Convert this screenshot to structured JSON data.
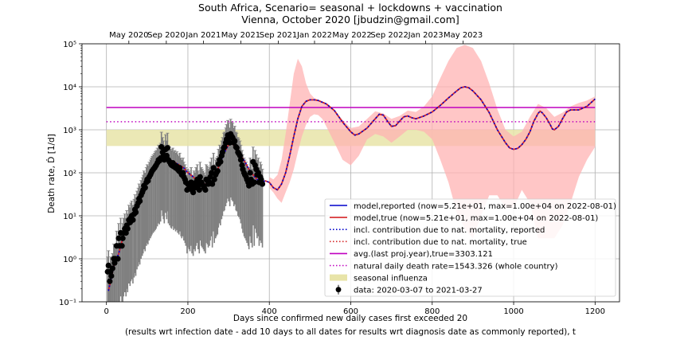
{
  "chart_data": {
    "type": "line",
    "title": "South Africa, Scenario= seasonal + lockdowns + vaccination",
    "subtitle": "Vienna, October 2020 [jbudzin@gmail.com]",
    "xlabel": "Days since confirmed new daily cases first exceeded 20",
    "xlabel2": "(results wrt infection date - add 10 days to all dates for results wrt diagnosis date as commonly reported), t",
    "ylabel": "Death rate, Ḋ [1/d]",
    "y_scale": "log",
    "xlim": [
      -60,
      1260
    ],
    "ylim": [
      0.1,
      100000
    ],
    "grid": true,
    "legend_position": "lower-right",
    "x_ticks": [
      0,
      200,
      400,
      600,
      800,
      1000,
      1200
    ],
    "x_tick_labels": [
      "0",
      "200",
      "400",
      "600",
      "800",
      "1000",
      "1200"
    ],
    "y_ticks": [
      0.1,
      1,
      10,
      100,
      1000,
      10000,
      100000
    ],
    "y_tick_labels": [
      "10⁻¹",
      "10⁰",
      "10¹",
      "10²",
      "10³",
      "10⁴",
      "10⁵"
    ],
    "top_axis": {
      "ticks": [
        55,
        147,
        238,
        330,
        422,
        511,
        603,
        695,
        784,
        876
      ],
      "labels": [
        "May 2020",
        "Sep 2020",
        "Jan 2021",
        "May 2021",
        "Sep 2021",
        "Jan 2022",
        "May 2022",
        "Sep 2022",
        "Jan 2023",
        "May 2023"
      ]
    },
    "colors": {
      "model_reported": "#0000cc",
      "model_true": "#d62728",
      "avg_line": "#bf00bf",
      "natural_line": "#bf00bf",
      "seasonal_band": "#e8e4a8",
      "uncertainty_band": "#ffb3b3",
      "data_points": "#000000",
      "error_bars": "#808080"
    },
    "horizontal_lines": {
      "avg_last_proj_year": 3303.121,
      "natural_daily_death_rate": 1543.326
    },
    "seasonal_band": [
      420,
      1000
    ],
    "model_curve": [
      [
        5,
        0.18
      ],
      [
        10,
        0.3
      ],
      [
        15,
        0.5
      ],
      [
        20,
        0.8
      ],
      [
        30,
        1.3
      ],
      [
        40,
        3
      ],
      [
        50,
        6
      ],
      [
        60,
        9
      ],
      [
        70,
        14
      ],
      [
        80,
        25
      ],
      [
        90,
        45
      ],
      [
        100,
        70
      ],
      [
        110,
        100
      ],
      [
        120,
        140
      ],
      [
        130,
        180
      ],
      [
        140,
        230
      ],
      [
        145,
        260
      ],
      [
        150,
        230
      ],
      [
        160,
        190
      ],
      [
        170,
        170
      ],
      [
        180,
        150
      ],
      [
        190,
        130
      ],
      [
        200,
        100
      ],
      [
        210,
        85
      ],
      [
        220,
        70
      ],
      [
        230,
        60
      ],
      [
        240,
        50
      ],
      [
        250,
        65
      ],
      [
        260,
        60
      ],
      [
        270,
        100
      ],
      [
        280,
        180
      ],
      [
        290,
        300
      ],
      [
        300,
        450
      ],
      [
        305,
        500
      ],
      [
        310,
        470
      ],
      [
        320,
        350
      ],
      [
        330,
        250
      ],
      [
        340,
        180
      ],
      [
        350,
        120
      ],
      [
        360,
        90
      ],
      [
        370,
        70
      ],
      [
        380,
        60
      ],
      [
        390,
        65
      ],
      [
        400,
        60
      ],
      [
        410,
        45
      ],
      [
        420,
        40
      ],
      [
        430,
        55
      ],
      [
        440,
        100
      ],
      [
        450,
        250
      ],
      [
        460,
        700
      ],
      [
        470,
        1800
      ],
      [
        480,
        3500
      ],
      [
        490,
        4600
      ],
      [
        500,
        5000
      ],
      [
        510,
        5000
      ],
      [
        520,
        4800
      ],
      [
        540,
        4000
      ],
      [
        560,
        2800
      ],
      [
        580,
        1500
      ],
      [
        600,
        900
      ],
      [
        610,
        750
      ],
      [
        620,
        800
      ],
      [
        640,
        1100
      ],
      [
        660,
        1800
      ],
      [
        670,
        2300
      ],
      [
        680,
        2200
      ],
      [
        690,
        1600
      ],
      [
        700,
        1200
      ],
      [
        710,
        1250
      ],
      [
        720,
        1600
      ],
      [
        730,
        2000
      ],
      [
        740,
        2100
      ],
      [
        750,
        1900
      ],
      [
        760,
        1800
      ],
      [
        780,
        2100
      ],
      [
        800,
        2600
      ],
      [
        820,
        3700
      ],
      [
        840,
        5500
      ],
      [
        860,
        8000
      ],
      [
        870,
        9500
      ],
      [
        880,
        10000
      ],
      [
        890,
        9500
      ],
      [
        900,
        8000
      ],
      [
        920,
        5000
      ],
      [
        940,
        2500
      ],
      [
        960,
        1000
      ],
      [
        980,
        500
      ],
      [
        990,
        380
      ],
      [
        1000,
        350
      ],
      [
        1010,
        370
      ],
      [
        1020,
        450
      ],
      [
        1030,
        600
      ],
      [
        1040,
        900
      ],
      [
        1050,
        1600
      ],
      [
        1060,
        2400
      ],
      [
        1065,
        2700
      ],
      [
        1070,
        2500
      ],
      [
        1080,
        1900
      ],
      [
        1090,
        1300
      ],
      [
        1095,
        1050
      ],
      [
        1100,
        1000
      ],
      [
        1110,
        1200
      ],
      [
        1120,
        1800
      ],
      [
        1130,
        2600
      ],
      [
        1140,
        2900
      ],
      [
        1160,
        2900
      ],
      [
        1180,
        3500
      ],
      [
        1200,
        5210
      ]
    ],
    "uncertainty_band": {
      "x": [
        400,
        410,
        420,
        430,
        440,
        450,
        460,
        470,
        480,
        490,
        500,
        510,
        520,
        530,
        540,
        560,
        580,
        600,
        620,
        640,
        660,
        680,
        700,
        720,
        740,
        760,
        780,
        800,
        820,
        840,
        860,
        880,
        900,
        920,
        940,
        960,
        980,
        1000,
        1020,
        1040,
        1060,
        1080,
        1100,
        1120,
        1140,
        1160,
        1180,
        1200
      ],
      "upper": [
        80,
        70,
        90,
        200,
        800,
        4000,
        20000,
        45000,
        30000,
        12000,
        7000,
        5500,
        5000,
        4500,
        4000,
        2900,
        1700,
        1100,
        1200,
        1800,
        2700,
        2400,
        1800,
        2100,
        2800,
        2600,
        3500,
        6000,
        16000,
        40000,
        80000,
        95000,
        80000,
        40000,
        12000,
        3000,
        1000,
        700,
        900,
        2000,
        4000,
        3200,
        2000,
        2500,
        3500,
        4200,
        4800,
        6000
      ],
      "lower": [
        45,
        35,
        25,
        20,
        35,
        60,
        120,
        300,
        700,
        1300,
        2000,
        2300,
        2200,
        1800,
        1200,
        500,
        200,
        150,
        250,
        600,
        800,
        700,
        500,
        700,
        1000,
        1000,
        900,
        600,
        200,
        60,
        12,
        5,
        3,
        10,
        30,
        30,
        15,
        15,
        40,
        20,
        3,
        3,
        3,
        6,
        20,
        80,
        200,
        400
      ]
    },
    "data_points": [
      [
        3,
        0.5
      ],
      [
        5,
        0.7
      ],
      [
        8,
        0.3
      ],
      [
        10,
        0.5
      ],
      [
        12,
        0.4
      ],
      [
        15,
        0.6
      ],
      [
        18,
        1
      ],
      [
        20,
        0.8
      ],
      [
        22,
        1
      ],
      [
        25,
        2
      ],
      [
        28,
        1
      ],
      [
        30,
        3
      ],
      [
        32,
        2
      ],
      [
        35,
        4
      ],
      [
        38,
        2
      ],
      [
        40,
        3
      ],
      [
        42,
        4
      ],
      [
        45,
        5
      ],
      [
        48,
        4
      ],
      [
        50,
        6
      ],
      [
        52,
        5
      ],
      [
        55,
        8
      ],
      [
        58,
        7
      ],
      [
        60,
        9
      ],
      [
        62,
        10
      ],
      [
        65,
        8
      ],
      [
        68,
        11
      ],
      [
        70,
        14
      ],
      [
        72,
        12
      ],
      [
        75,
        17
      ],
      [
        78,
        20
      ],
      [
        80,
        25
      ],
      [
        82,
        22
      ],
      [
        85,
        30
      ],
      [
        88,
        35
      ],
      [
        90,
        40
      ],
      [
        92,
        50
      ],
      [
        95,
        45
      ],
      [
        98,
        60
      ],
      [
        100,
        70
      ],
      [
        102,
        65
      ],
      [
        105,
        80
      ],
      [
        108,
        90
      ],
      [
        110,
        100
      ],
      [
        112,
        110
      ],
      [
        115,
        120
      ],
      [
        118,
        130
      ],
      [
        120,
        140
      ],
      [
        122,
        150
      ],
      [
        125,
        170
      ],
      [
        128,
        200
      ],
      [
        130,
        190
      ],
      [
        133,
        220
      ],
      [
        135,
        400
      ],
      [
        138,
        300
      ],
      [
        140,
        250
      ],
      [
        142,
        200
      ],
      [
        145,
        350
      ],
      [
        148,
        250
      ],
      [
        150,
        380
      ],
      [
        152,
        200
      ],
      [
        155,
        180
      ],
      [
        158,
        160
      ],
      [
        160,
        150
      ],
      [
        163,
        170
      ],
      [
        165,
        140
      ],
      [
        168,
        150
      ],
      [
        170,
        130
      ],
      [
        173,
        140
      ],
      [
        175,
        120
      ],
      [
        178,
        110
      ],
      [
        180,
        130
      ],
      [
        183,
        100
      ],
      [
        185,
        90
      ],
      [
        188,
        100
      ],
      [
        190,
        80
      ],
      [
        193,
        70
      ],
      [
        195,
        60
      ],
      [
        198,
        40
      ],
      [
        200,
        55
      ],
      [
        203,
        50
      ],
      [
        205,
        45
      ],
      [
        208,
        60
      ],
      [
        210,
        40
      ],
      [
        213,
        35
      ],
      [
        215,
        50
      ],
      [
        218,
        45
      ],
      [
        220,
        60
      ],
      [
        223,
        70
      ],
      [
        225,
        50
      ],
      [
        228,
        40
      ],
      [
        230,
        80
      ],
      [
        233,
        60
      ],
      [
        235,
        55
      ],
      [
        238,
        50
      ],
      [
        240,
        45
      ],
      [
        243,
        40
      ],
      [
        245,
        70
      ],
      [
        248,
        65
      ],
      [
        250,
        55
      ],
      [
        253,
        60
      ],
      [
        255,
        80
      ],
      [
        258,
        100
      ],
      [
        260,
        55
      ],
      [
        263,
        130
      ],
      [
        265,
        70
      ],
      [
        268,
        90
      ],
      [
        270,
        100
      ],
      [
        273,
        110
      ],
      [
        275,
        160
      ],
      [
        278,
        200
      ],
      [
        280,
        180
      ],
      [
        283,
        250
      ],
      [
        285,
        300
      ],
      [
        288,
        380
      ],
      [
        290,
        400
      ],
      [
        293,
        500
      ],
      [
        295,
        600
      ],
      [
        298,
        750
      ],
      [
        300,
        650
      ],
      [
        303,
        500
      ],
      [
        305,
        800
      ],
      [
        308,
        700
      ],
      [
        310,
        650
      ],
      [
        313,
        500
      ],
      [
        315,
        550
      ],
      [
        318,
        400
      ],
      [
        320,
        380
      ],
      [
        323,
        300
      ],
      [
        325,
        280
      ],
      [
        328,
        250
      ],
      [
        330,
        200
      ],
      [
        333,
        150
      ],
      [
        335,
        120
      ],
      [
        338,
        100
      ],
      [
        340,
        90
      ],
      [
        343,
        80
      ],
      [
        345,
        70
      ],
      [
        348,
        60
      ],
      [
        350,
        50
      ],
      [
        353,
        100
      ],
      [
        355,
        70
      ],
      [
        358,
        55
      ],
      [
        360,
        180
      ],
      [
        363,
        60
      ],
      [
        365,
        150
      ],
      [
        368,
        120
      ],
      [
        370,
        90
      ],
      [
        373,
        100
      ],
      [
        375,
        60
      ],
      [
        378,
        80
      ],
      [
        380,
        70
      ],
      [
        383,
        55
      ]
    ],
    "legend": [
      {
        "label": "model,reported (now=5.21e+01, max=1.00e+04 on 2022-08-01)",
        "style": "solid",
        "color": "#0000cc"
      },
      {
        "label": "model,true (now=5.21e+01, max=1.00e+04 on 2022-08-01)",
        "style": "solid",
        "color": "#d62728"
      },
      {
        "label": "incl. contribution due to nat. mortality, reported",
        "style": "dotted",
        "color": "#0000cc"
      },
      {
        "label": "incl. contribution due to nat. mortality, true",
        "style": "dotted",
        "color": "#d62728"
      },
      {
        "label": "avg.(last proj.year),true=3303.121",
        "style": "solid",
        "color": "#bf00bf"
      },
      {
        "label": "natural daily death rate=1543.326 (whole country)",
        "style": "dotted",
        "color": "#bf00bf"
      },
      {
        "label": "seasonal influenza",
        "style": "patch",
        "color": "#e8e4a8"
      },
      {
        "label": "data: 2020-03-07 to 2021-03-27",
        "style": "marker",
        "color": "#000000"
      }
    ]
  }
}
